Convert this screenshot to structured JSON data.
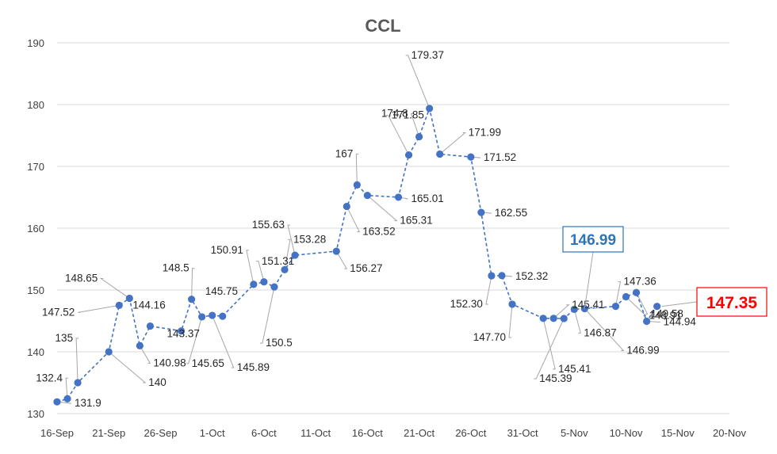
{
  "chart_data": {
    "type": "line",
    "title": "CCL",
    "xlabel": "",
    "ylabel": "",
    "ylim": [
      130,
      190
    ],
    "y_ticks": [
      "130",
      "140",
      "150",
      "160",
      "170",
      "180",
      "190"
    ],
    "x_tick_labels": [
      "16-Sep",
      "21-Sep",
      "26-Sep",
      "1-Oct",
      "6-Oct",
      "11-Oct",
      "16-Oct",
      "21-Oct",
      "26-Oct",
      "31-Oct",
      "5-Nov",
      "10-Nov",
      "15-Nov",
      "20-Nov"
    ],
    "grid": true,
    "series": [
      {
        "name": "CCL",
        "points": [
          {
            "day": 0,
            "value": 131.9,
            "label": "131.9"
          },
          {
            "day": 1,
            "value": 132.4,
            "label": "132.4"
          },
          {
            "day": 2,
            "value": 135,
            "label": "135"
          },
          {
            "day": 5,
            "value": 140,
            "label": "140"
          },
          {
            "day": 6,
            "value": 147.52,
            "label": "147.52"
          },
          {
            "day": 7,
            "value": 148.65,
            "label": "148.65"
          },
          {
            "day": 8,
            "value": 140.98,
            "label": "140.98"
          },
          {
            "day": 9,
            "value": 144.16,
            "label": "144.16"
          },
          {
            "day": 12,
            "value": 143.37,
            "label": "143.37"
          },
          {
            "day": 13,
            "value": 148.5,
            "label": "148.5"
          },
          {
            "day": 14,
            "value": 145.65,
            "label": "145.65"
          },
          {
            "day": 15,
            "value": 145.89,
            "label": "145.89"
          },
          {
            "day": 16,
            "value": 145.75,
            "label": "145.75"
          },
          {
            "day": 19,
            "value": 150.91,
            "label": "150.91"
          },
          {
            "day": 20,
            "value": 151.31,
            "label": "151.31"
          },
          {
            "day": 21,
            "value": 150.5,
            "label": "150.5"
          },
          {
            "day": 22,
            "value": 153.28,
            "label": "153.28"
          },
          {
            "day": 23,
            "value": 155.63,
            "label": "155.63"
          },
          {
            "day": 27,
            "value": 156.27,
            "label": "156.27"
          },
          {
            "day": 28,
            "value": 163.52,
            "label": "163.52"
          },
          {
            "day": 29,
            "value": 167,
            "label": "167"
          },
          {
            "day": 30,
            "value": 165.31,
            "label": "165.31"
          },
          {
            "day": 33,
            "value": 165.01,
            "label": "165.01"
          },
          {
            "day": 34,
            "value": 171.85,
            "label": "171.85"
          },
          {
            "day": 35,
            "value": 174.8,
            "label": "174.8"
          },
          {
            "day": 36,
            "value": 179.37,
            "label": "179.37"
          },
          {
            "day": 37,
            "value": 171.99,
            "label": "171.99"
          },
          {
            "day": 40,
            "value": 171.52,
            "label": "171.52"
          },
          {
            "day": 41,
            "value": 162.55,
            "label": "162.55"
          },
          {
            "day": 42,
            "value": 152.3,
            "label": "152.30"
          },
          {
            "day": 43,
            "value": 152.32,
            "label": "152.32"
          },
          {
            "day": 44,
            "value": 147.7,
            "label": "147.70"
          },
          {
            "day": 47,
            "value": 145.41,
            "label": "145.41"
          },
          {
            "day": 48,
            "value": 145.41,
            "label": "145.41"
          },
          {
            "day": 49,
            "value": 145.39,
            "label": "145.39"
          },
          {
            "day": 50,
            "value": 146.87,
            "label": "146.87"
          },
          {
            "day": 51,
            "value": 146.99,
            "label": "146.99"
          },
          {
            "day": 54,
            "value": 147.36,
            "label": "147.36"
          },
          {
            "day": 55,
            "value": 148.91,
            "label": "148.91"
          },
          {
            "day": 56,
            "value": 149.58,
            "label": "149.58"
          },
          {
            "day": 57,
            "value": 144.94,
            "label": "144.94"
          },
          {
            "day": 58,
            "value": 147.35,
            "label": "147.35"
          }
        ]
      }
    ],
    "annotations": [
      {
        "text": "146.99",
        "color": "#2e75b6",
        "style": "boxed-callout"
      },
      {
        "text": "147.35",
        "color": "#ff0000",
        "style": "boxed-callout"
      }
    ],
    "colors": {
      "series": "#4472c4",
      "grid": "#d9d9d9",
      "leader": "#a6a6a6"
    }
  }
}
